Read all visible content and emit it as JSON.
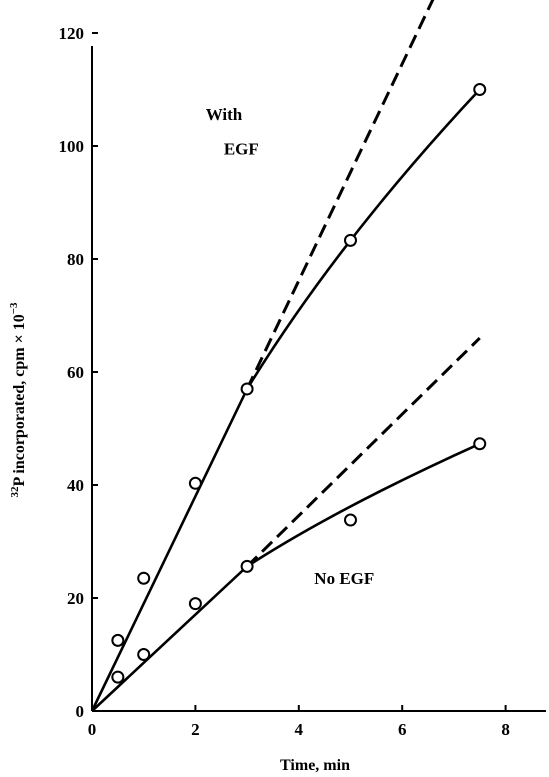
{
  "chart_data": {
    "type": "line",
    "title": "",
    "xlabel": "Time, min",
    "ylabel_sup": "32",
    "ylabel_main": "P incorporated, cpm × 10",
    "ylabel_exp": "−3",
    "xlim": [
      0,
      8.8
    ],
    "ylim": [
      0,
      120
    ],
    "xticks": [
      0,
      2,
      4,
      6,
      8
    ],
    "yticks": [
      0,
      20,
      40,
      60,
      80,
      100,
      120
    ],
    "grid": false,
    "series": [
      {
        "key": "with_egf",
        "points": [
          [
            0.5,
            12.5
          ],
          [
            1,
            23.5
          ],
          [
            2,
            40.3
          ],
          [
            3,
            57
          ],
          [
            5,
            83.3
          ],
          [
            7.5,
            110
          ]
        ],
        "curve": [
          [
            0,
            0
          ],
          [
            3,
            57
          ],
          [
            5,
            83.3
          ],
          [
            7.5,
            110
          ]
        ],
        "extrapolation": [
          [
            3,
            57
          ],
          [
            6.65,
            127
          ]
        ]
      },
      {
        "key": "no_egf",
        "points": [
          [
            0.5,
            6
          ],
          [
            1,
            10
          ],
          [
            2,
            19
          ],
          [
            3,
            25.6
          ],
          [
            5,
            33.8
          ],
          [
            7.5,
            47.3
          ]
        ],
        "curve": [
          [
            0,
            0
          ],
          [
            3,
            25.6
          ],
          [
            5,
            36.2
          ],
          [
            7.5,
            47.3
          ]
        ],
        "extrapolation": [
          [
            3,
            25.6
          ],
          [
            7.5,
            66
          ]
        ]
      }
    ],
    "annotations": [
      {
        "text": "With",
        "x": 2.2,
        "y": 104.6
      },
      {
        "text": "EGF",
        "x": 2.55,
        "y": 98.5
      },
      {
        "text": "No EGF",
        "x": 4.3,
        "y": 22.5
      }
    ]
  }
}
